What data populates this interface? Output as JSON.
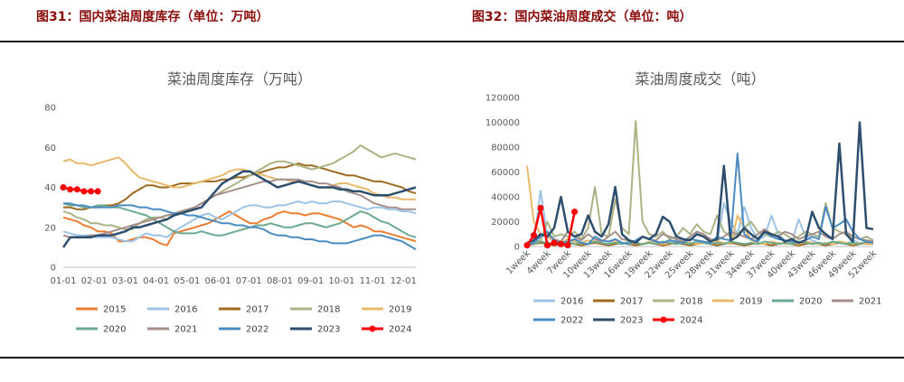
{
  "figures": {
    "left_title": "图31：国内菜油周度库存（单位：万吨）",
    "right_title": "图32：国内菜油周度成交（单位：吨）"
  },
  "chart_data": [
    {
      "type": "line",
      "title": "菜油周度库存（万吨）",
      "x_ticks": [
        "01-01",
        "02-01",
        "03-01",
        "04-01",
        "05-01",
        "06-01",
        "07-01",
        "08-01",
        "09-01",
        "10-01",
        "11-01",
        "12-01"
      ],
      "x_count": 52,
      "ylim": [
        0,
        80
      ],
      "y_ticks": [
        0,
        20,
        40,
        60,
        80
      ],
      "legend_position": "bottom",
      "series": [
        {
          "name": "2015",
          "color": "#ed7d31",
          "values": [
            25,
            24,
            23,
            21,
            20,
            18,
            18,
            17,
            13,
            13,
            14,
            15,
            15,
            14,
            12,
            11,
            17,
            18,
            19,
            20,
            21,
            22,
            24,
            26,
            28,
            26,
            24,
            22,
            22,
            24,
            25,
            27,
            28,
            27,
            27,
            26,
            27,
            27,
            26,
            25,
            24,
            22,
            20,
            21,
            20,
            18,
            18,
            17,
            16,
            15,
            14,
            13
          ]
        },
        {
          "name": "2016",
          "color": "#9dc3e6",
          "values": [
            18,
            17,
            16,
            16,
            16,
            15,
            15,
            15,
            14,
            13,
            13,
            15,
            17,
            16,
            16,
            15,
            18,
            20,
            22,
            24,
            26,
            27,
            25,
            24,
            26,
            28,
            30,
            31,
            31,
            30,
            30,
            31,
            31,
            32,
            33,
            32,
            33,
            32,
            32,
            33,
            33,
            32,
            31,
            30,
            29,
            30,
            30,
            29,
            29,
            28,
            28,
            27
          ]
        },
        {
          "name": "2017",
          "color": "#9e6a1e",
          "values": [
            30,
            30,
            29,
            29,
            30,
            30,
            31,
            31,
            32,
            34,
            37,
            39,
            41,
            41,
            40,
            40,
            41,
            42,
            42,
            42,
            43,
            43,
            43,
            44,
            44,
            45,
            45,
            46,
            47,
            48,
            49,
            50,
            50,
            51,
            52,
            51,
            51,
            50,
            49,
            48,
            47,
            46,
            46,
            45,
            44,
            43,
            43,
            42,
            41,
            40,
            38,
            37
          ]
        },
        {
          "name": "2018",
          "color": "#a9b383",
          "values": [
            28,
            27,
            25,
            24,
            22,
            22,
            21,
            21,
            20,
            19,
            19,
            22,
            24,
            25,
            25,
            24,
            27,
            28,
            29,
            30,
            32,
            34,
            36,
            38,
            40,
            42,
            44,
            46,
            48,
            50,
            52,
            53,
            53,
            52,
            51,
            50,
            49,
            50,
            51,
            52,
            54,
            56,
            58,
            61,
            59,
            57,
            55,
            56,
            57,
            56,
            55,
            54
          ]
        },
        {
          "name": "2019",
          "color": "#e8b96a",
          "values": [
            53,
            54,
            52,
            52,
            51,
            52,
            53,
            54,
            55,
            52,
            48,
            45,
            44,
            43,
            42,
            41,
            40,
            40,
            41,
            42,
            43,
            44,
            45,
            46,
            48,
            49,
            49,
            48,
            47,
            46,
            45,
            44,
            44,
            43,
            43,
            42,
            41,
            40,
            40,
            41,
            42,
            42,
            41,
            40,
            39,
            37,
            36,
            35,
            35,
            34,
            34,
            34
          ]
        },
        {
          "name": "2020",
          "color": "#6baa8f",
          "values": [
            32,
            31,
            31,
            30,
            30,
            31,
            31,
            30,
            30,
            29,
            28,
            27,
            26,
            24,
            22,
            20,
            18,
            17,
            17,
            17,
            18,
            17,
            16,
            16,
            17,
            18,
            19,
            20,
            21,
            21,
            22,
            21,
            20,
            20,
            21,
            22,
            22,
            21,
            20,
            21,
            22,
            24,
            26,
            28,
            27,
            25,
            23,
            22,
            20,
            18,
            16,
            15
          ]
        },
        {
          "name": "2021",
          "color": "#a68f8a",
          "values": [
            16,
            15,
            15,
            15,
            16,
            16,
            17,
            18,
            19,
            20,
            21,
            22,
            23,
            24,
            25,
            26,
            27,
            28,
            29,
            30,
            32,
            34,
            36,
            37,
            38,
            39,
            40,
            41,
            42,
            43,
            43,
            44,
            44,
            44,
            44,
            43,
            43,
            42,
            42,
            41,
            40,
            38,
            37,
            36,
            34,
            32,
            31,
            30,
            30,
            29,
            29,
            29
          ]
        },
        {
          "name": "2022",
          "color": "#4a8cc2",
          "values": [
            32,
            32,
            31,
            31,
            30,
            30,
            30,
            30,
            31,
            31,
            31,
            30,
            30,
            29,
            29,
            28,
            27,
            27,
            26,
            26,
            25,
            24,
            23,
            22,
            22,
            21,
            21,
            20,
            20,
            19,
            17,
            16,
            16,
            15,
            15,
            14,
            14,
            13,
            13,
            12,
            12,
            12,
            13,
            14,
            15,
            16,
            16,
            15,
            14,
            13,
            11,
            9
          ]
        },
        {
          "name": "2023",
          "color": "#2e4e6e",
          "values": [
            10,
            15,
            15,
            15,
            15,
            16,
            16,
            16,
            17,
            18,
            20,
            20,
            21,
            22,
            23,
            24,
            26,
            27,
            28,
            29,
            30,
            34,
            38,
            42,
            44,
            46,
            48,
            48,
            46,
            44,
            42,
            40,
            41,
            42,
            43,
            42,
            41,
            40,
            40,
            40,
            39,
            39,
            38,
            38,
            37,
            36,
            36,
            36,
            37,
            38,
            39,
            40
          ]
        },
        {
          "name": "2024",
          "color": "#ff0000",
          "marker": true,
          "values": [
            40,
            39,
            39,
            38,
            38,
            38
          ]
        }
      ]
    },
    {
      "type": "line",
      "title": "菜油周度成交（吨）",
      "x_labels": [
        "1week",
        "4week",
        "7week",
        "10week",
        "13week",
        "16week",
        "19week",
        "22week",
        "25week",
        "28week",
        "31week",
        "34week",
        "37week",
        "40week",
        "43week",
        "46week",
        "49week",
        "52week"
      ],
      "x_count": 52,
      "ylim": [
        0,
        120000
      ],
      "y_ticks": [
        0,
        20000,
        40000,
        60000,
        80000,
        100000,
        120000
      ],
      "legend_position": "bottom",
      "series": [
        {
          "name": "2016",
          "color": "#9dc3e6",
          "values": [
            2000,
            3000,
            45000,
            8000,
            4000,
            2000,
            3000,
            5000,
            3000,
            2000,
            4000,
            3000,
            2000,
            6000,
            3000,
            2000,
            3000,
            2000,
            4000,
            3000,
            2000,
            3000,
            5000,
            3000,
            2000,
            4000,
            3000,
            2000,
            3000,
            35000,
            20000,
            10000,
            32000,
            15000,
            6000,
            8000,
            25000,
            10000,
            5000,
            3000,
            22000,
            8000,
            5000,
            3000,
            2000,
            4000,
            3000,
            2000,
            5000,
            3000,
            2000,
            2000
          ]
        },
        {
          "name": "2017",
          "color": "#9e6a1e",
          "values": [
            1000,
            2000,
            3000,
            2000,
            1000,
            2000,
            3000,
            2000,
            1000,
            2000,
            3000,
            2000,
            1000,
            2000,
            3000,
            2000,
            1000,
            2000,
            3000,
            2000,
            1000,
            2000,
            3000,
            2000,
            1000,
            2000,
            3000,
            2000,
            1000,
            2000,
            3000,
            2000,
            1000,
            2000,
            3000,
            2000,
            1000,
            2000,
            3000,
            2000,
            1000,
            2000,
            3000,
            2000,
            1000,
            2000,
            3000,
            2000,
            1000,
            2000,
            3000,
            2000
          ]
        },
        {
          "name": "2018",
          "color": "#a9b383",
          "values": [
            2000,
            3000,
            5000,
            20000,
            8000,
            10000,
            8000,
            12000,
            6000,
            15000,
            48000,
            10000,
            8000,
            38000,
            15000,
            10000,
            101000,
            20000,
            10000,
            8000,
            12000,
            6000,
            8000,
            15000,
            10000,
            18000,
            12000,
            10000,
            25000,
            12000,
            8000,
            10000,
            15000,
            20000,
            12000,
            10000,
            8000,
            12000,
            10000,
            6000,
            8000,
            12000,
            10000,
            8000,
            35000,
            15000,
            12000,
            10000,
            8000,
            6000,
            8000,
            5000
          ]
        },
        {
          "name": "2019",
          "color": "#e8b96a",
          "values": [
            65000,
            20000,
            10000,
            8000,
            5000,
            3000,
            6000,
            4000,
            3000,
            5000,
            4000,
            3000,
            2000,
            4000,
            3000,
            2000,
            3000,
            2000,
            4000,
            3000,
            2000,
            3000,
            2000,
            4000,
            3000,
            2000,
            3000,
            2000,
            4000,
            3000,
            2000,
            25000,
            15000,
            5000,
            3000,
            2000,
            4000,
            3000,
            2000,
            3000,
            2000,
            4000,
            3000,
            2000,
            3000,
            2000,
            4000,
            3000,
            2000,
            3000,
            2000,
            2000
          ]
        },
        {
          "name": "2020",
          "color": "#6baa8f",
          "values": [
            3000,
            2000,
            4000,
            3000,
            2000,
            3000,
            4000,
            2000,
            3000,
            2000,
            4000,
            3000,
            2000,
            3000,
            2000,
            4000,
            3000,
            2000,
            3000,
            2000,
            4000,
            3000,
            2000,
            3000,
            2000,
            4000,
            3000,
            2000,
            3000,
            2000,
            4000,
            3000,
            2000,
            3000,
            2000,
            4000,
            3000,
            2000,
            3000,
            2000,
            4000,
            3000,
            2000,
            3000,
            2000,
            4000,
            3000,
            2000,
            3000,
            2000,
            4000,
            3000
          ]
        },
        {
          "name": "2021",
          "color": "#a68f8a",
          "values": [
            3000,
            5000,
            8000,
            10000,
            6000,
            4000,
            12000,
            8000,
            5000,
            10000,
            6000,
            4000,
            8000,
            12000,
            6000,
            5000,
            4000,
            8000,
            6000,
            5000,
            10000,
            8000,
            6000,
            4000,
            8000,
            12000,
            10000,
            6000,
            5000,
            8000,
            12000,
            10000,
            8000,
            6000,
            10000,
            14000,
            10000,
            8000,
            12000,
            10000,
            6000,
            8000,
            10000,
            12000,
            8000,
            6000,
            10000,
            12000,
            8000,
            6000,
            5000,
            4000
          ]
        },
        {
          "name": "2022",
          "color": "#4a8cc2",
          "values": [
            2000,
            3000,
            8000,
            12000,
            5000,
            3000,
            4000,
            6000,
            3000,
            2000,
            8000,
            5000,
            4000,
            6000,
            3000,
            2000,
            5000,
            8000,
            6000,
            4000,
            3000,
            5000,
            4000,
            3000,
            6000,
            5000,
            4000,
            3000,
            8000,
            6000,
            5000,
            75000,
            10000,
            6000,
            4000,
            12000,
            8000,
            6000,
            5000,
            4000,
            3000,
            5000,
            8000,
            6000,
            32000,
            15000,
            18000,
            22000,
            12000,
            6000,
            4000,
            3000
          ]
        },
        {
          "name": "2023",
          "color": "#2e4e6e",
          "values": [
            3000,
            5000,
            10000,
            8000,
            15000,
            40000,
            12000,
            8000,
            10000,
            25000,
            12000,
            8000,
            18000,
            48000,
            10000,
            5000,
            3000,
            8000,
            6000,
            10000,
            24000,
            20000,
            8000,
            6000,
            5000,
            10000,
            8000,
            4000,
            6000,
            65000,
            5000,
            8000,
            15000,
            10000,
            6000,
            12000,
            10000,
            8000,
            4000,
            6000,
            3000,
            5000,
            28000,
            15000,
            10000,
            6000,
            83000,
            10000,
            4000,
            100000,
            15000,
            14000
          ]
        },
        {
          "name": "2024",
          "color": "#ff0000",
          "marker": true,
          "values": [
            1000,
            9000,
            31000,
            1000,
            3000,
            2000,
            1000,
            28000
          ]
        }
      ]
    }
  ]
}
